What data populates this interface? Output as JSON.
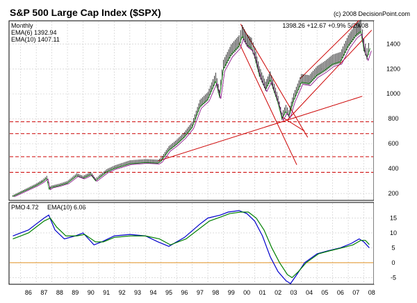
{
  "chart_data": [
    {
      "type": "line",
      "title": "S&P 500 Large Cap Index ($SPX)",
      "source": "(c) 2008 DecisionPoint.com",
      "period": "Monthly",
      "last_quote": "1398.26 +12.67 +0.9% 5/29/08",
      "legend": [
        {
          "label": "EMA(6) 1392.94",
          "color": "#008000"
        },
        {
          "label": "EMA(10) 1407.11",
          "color": "#800080"
        }
      ],
      "x_tick_labels": [
        "86",
        "87",
        "88",
        "89",
        "90",
        "91",
        "92",
        "93",
        "94",
        "95",
        "96",
        "97",
        "98",
        "99",
        "00",
        "01",
        "02",
        "03",
        "04",
        "05",
        "06",
        "07",
        "08"
      ],
      "y_tick_labels": [
        "200",
        "400",
        "600",
        "800",
        "1000",
        "1200",
        "1400"
      ],
      "ylim": [
        150,
        1580
      ],
      "dashed_support_levels": [
        370,
        495,
        680,
        775
      ],
      "series": [
        {
          "name": "$SPX",
          "color": "#000000",
          "x": [
            1985.5,
            1986.0,
            1986.5,
            1987.0,
            1987.4,
            1987.67,
            1987.83,
            1988.0,
            1988.5,
            1989.0,
            1989.6,
            1990.0,
            1990.5,
            1990.8,
            1991.0,
            1991.5,
            1992.0,
            1993.0,
            1994.0,
            1994.8,
            1995.0,
            1995.5,
            1996.0,
            1996.5,
            1997.0,
            1997.5,
            1998.0,
            1998.5,
            1998.75,
            1999.0,
            1999.5,
            2000.0,
            2000.2,
            2000.5,
            2000.8,
            2001.0,
            2001.3,
            2001.7,
            2002.0,
            2002.5,
            2002.75,
            2003.0,
            2003.2,
            2003.5,
            2004.0,
            2004.5,
            2005.0,
            2005.5,
            2006.0,
            2006.5,
            2007.0,
            2007.5,
            2007.8,
            2008.0,
            2008.2,
            2008.4
          ],
          "values": [
            180,
            210,
            240,
            270,
            300,
            330,
            240,
            255,
            270,
            290,
            350,
            330,
            360,
            310,
            330,
            380,
            410,
            450,
            460,
            455,
            470,
            560,
            610,
            670,
            750,
            920,
            980,
            1130,
            1000,
            1230,
            1350,
            1420,
            1500,
            1430,
            1400,
            1330,
            1180,
            1060,
            1140,
            950,
            820,
            880,
            840,
            970,
            1120,
            1110,
            1180,
            1220,
            1270,
            1290,
            1420,
            1510,
            1540,
            1390,
            1320,
            1400
          ]
        },
        {
          "name": "PMO",
          "color": "#0000cc",
          "x": [
            1985.5,
            1986.0,
            1986.5,
            1987.0,
            1987.5,
            1987.8,
            1988.2,
            1988.8,
            1989.5,
            1990.0,
            1990.7,
            1991.2,
            1992.0,
            1993.0,
            1994.0,
            1994.8,
            1995.5,
            1996.5,
            1997.5,
            1998.0,
            1998.8,
            1999.3,
            2000.0,
            2000.5,
            2001.0,
            2001.5,
            2002.0,
            2002.5,
            2003.0,
            2003.3,
            2003.7,
            2004.2,
            2005.0,
            2005.7,
            2006.5,
            2007.2,
            2007.7,
            2008.0,
            2008.35
          ],
          "values": [
            9,
            10,
            11,
            13,
            15,
            16,
            11,
            8,
            9,
            10,
            6,
            7,
            9,
            9.5,
            9,
            7,
            5.5,
            8.5,
            13,
            15,
            16,
            17,
            17.5,
            16.5,
            14,
            9,
            2,
            -3,
            -6,
            -7,
            -4,
            0,
            3,
            4,
            5,
            6.5,
            8,
            7,
            5
          ]
        },
        {
          "name": "EMA(10)",
          "color": "#008000",
          "x": [
            1985.5,
            1986.0,
            1986.5,
            1987.0,
            1987.5,
            1987.9,
            1988.3,
            1988.9,
            1989.6,
            1990.1,
            1990.8,
            1991.3,
            1992.0,
            1993.0,
            1994.0,
            1994.9,
            1995.6,
            1996.6,
            1997.6,
            1998.1,
            1998.9,
            1999.4,
            2000.1,
            2000.6,
            2001.1,
            2001.6,
            2002.1,
            2002.6,
            2003.1,
            2003.4,
            2003.8,
            2004.3,
            2005.1,
            2005.8,
            2006.6,
            2007.3,
            2007.8,
            2008.1,
            2008.35
          ],
          "values": [
            8,
            9,
            10,
            12,
            14,
            15,
            12,
            9,
            9,
            9.5,
            7,
            7,
            8.5,
            9,
            9,
            8,
            6,
            8,
            12,
            14,
            15.5,
            16.5,
            17,
            17,
            15,
            11,
            5,
            0,
            -4,
            -5,
            -3,
            0,
            3,
            4,
            5,
            6,
            7.5,
            7.5,
            6.1
          ]
        }
      ],
      "pmo_legend": [
        {
          "label": "PMO",
          "value": "4.72",
          "color": "#0000cc"
        },
        {
          "label": "EMA(10)",
          "value": "6.06",
          "color": "#008000"
        }
      ],
      "pmo_y_tick_labels": [
        "-5",
        "0",
        "5",
        "10",
        "15"
      ],
      "pmo_ylim": [
        -7,
        20
      ]
    }
  ]
}
